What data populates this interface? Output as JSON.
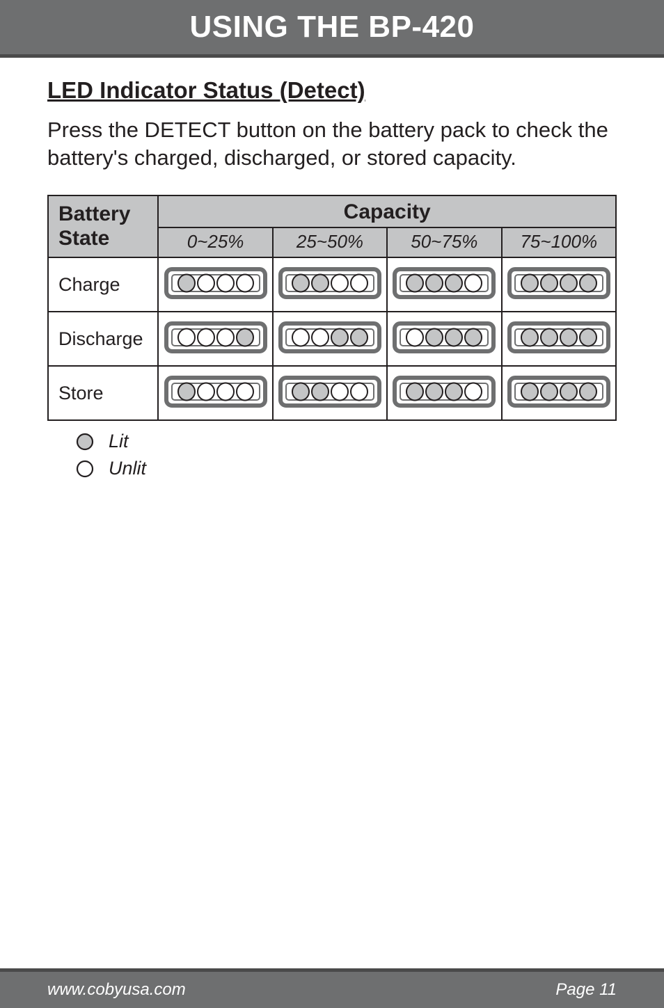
{
  "header": {
    "title": "USING THE BP-420"
  },
  "section": {
    "subheading": "LED Indicator Status (Detect)",
    "body": "Press the DETECT button on the battery pack to check the battery's charged, discharged, or stored capacity."
  },
  "table": {
    "state_header_1": "Battery",
    "state_header_2": "State",
    "capacity_header": "Capacity",
    "ranges": [
      "0~25%",
      "25~50%",
      "50~75%",
      "75~100%"
    ],
    "rows": [
      {
        "label": "Charge",
        "cells": [
          [
            true,
            false,
            false,
            false
          ],
          [
            true,
            true,
            false,
            false
          ],
          [
            true,
            true,
            true,
            false
          ],
          [
            true,
            true,
            true,
            true
          ]
        ]
      },
      {
        "label": "Discharge",
        "cells": [
          [
            false,
            false,
            false,
            true
          ],
          [
            false,
            false,
            true,
            true
          ],
          [
            false,
            true,
            true,
            true
          ],
          [
            true,
            true,
            true,
            true
          ]
        ]
      },
      {
        "label": "Store",
        "cells": [
          [
            true,
            false,
            false,
            false
          ],
          [
            true,
            true,
            false,
            false
          ],
          [
            true,
            true,
            true,
            false
          ],
          [
            true,
            true,
            true,
            true
          ]
        ]
      }
    ]
  },
  "legend": {
    "lit": "Lit",
    "unlit": "Unlit"
  },
  "footer": {
    "url": "www.cobyusa.com",
    "page": "Page 11"
  },
  "style": {
    "lit_fill": "#c4c5c6",
    "unlit_fill": "#ffffff",
    "stroke": "#231f20",
    "module_outer_stroke": "#6e6f70",
    "module_inner_stroke": "#6e6f70"
  }
}
